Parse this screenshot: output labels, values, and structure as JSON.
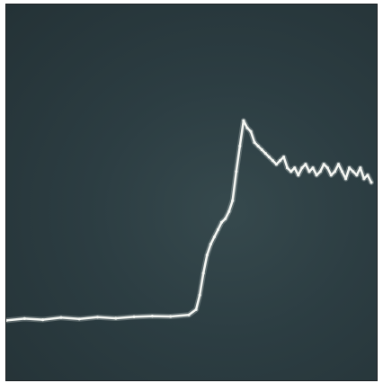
{
  "chart_data": {
    "type": "line",
    "title": "",
    "xlabel": "",
    "ylabel": "",
    "grid": false,
    "legend": "none",
    "xlim": [
      0,
      100
    ],
    "ylim": [
      0,
      100
    ],
    "background_color": "#2c3d42",
    "trace_color": "#f4f6f2",
    "series": [
      {
        "x": [
          0,
          5,
          10,
          15,
          20,
          25,
          30,
          35,
          40,
          45,
          50,
          52,
          53,
          54,
          55,
          56,
          57,
          58,
          59,
          60,
          61,
          62,
          63,
          64,
          65,
          66,
          67,
          68,
          69,
          70,
          71,
          72,
          73,
          74,
          75,
          76,
          77,
          78,
          79,
          80,
          81,
          82,
          83,
          84,
          85,
          86,
          87,
          88,
          89,
          90,
          91,
          92,
          93,
          94,
          95,
          96,
          97,
          98,
          99,
          100
        ],
        "y": [
          15,
          15.5,
          15.2,
          15.8,
          15.4,
          15.9,
          15.6,
          16.0,
          16.2,
          16.1,
          16.5,
          18,
          22,
          28,
          33,
          36,
          38,
          40,
          42,
          43,
          45,
          48,
          56,
          63,
          70,
          68,
          67,
          64,
          63,
          62,
          61,
          60,
          59,
          58,
          59,
          60,
          57,
          56,
          57,
          55,
          57,
          58,
          56,
          57,
          55,
          56,
          58,
          57,
          55,
          56,
          58,
          56,
          54,
          57,
          56,
          55,
          57,
          54,
          55,
          53
        ]
      }
    ]
  }
}
